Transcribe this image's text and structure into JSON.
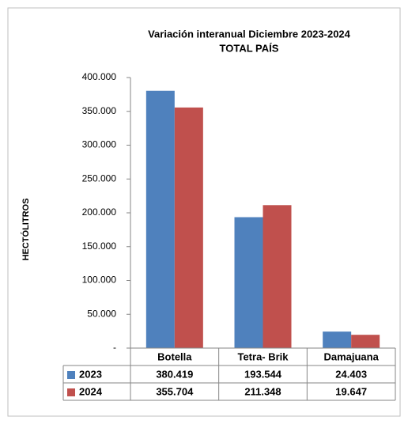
{
  "chart_data": {
    "type": "bar",
    "title": "Variación interanual  Diciembre 2023-2024",
    "subtitle": "TOTAL PAÍS",
    "y_label": "HECTÓLITROS",
    "categories": [
      "Botella",
      "Tetra- Brik",
      "Damajuana"
    ],
    "series": [
      {
        "name": "2023",
        "color": "#4f81bd",
        "values": [
          380419,
          193544,
          24403
        ],
        "value_labels": [
          "380.419",
          "193.544",
          "24.403"
        ]
      },
      {
        "name": "2024",
        "color": "#c0504d",
        "values": [
          355704,
          211348,
          19647
        ],
        "value_labels": [
          "355.704",
          "211.348",
          "19.647"
        ]
      }
    ],
    "ylim": [
      0,
      400000
    ],
    "yticks": [
      {
        "value": 0,
        "label": "-"
      },
      {
        "value": 50000,
        "label": "50.000"
      },
      {
        "value": 100000,
        "label": "100.000"
      },
      {
        "value": 150000,
        "label": "150.000"
      },
      {
        "value": 200000,
        "label": "200.000"
      },
      {
        "value": 250000,
        "label": "250.000"
      },
      {
        "value": 300000,
        "label": "300.000"
      },
      {
        "value": 350000,
        "label": "350.000"
      },
      {
        "value": 400000,
        "label": "400.000"
      }
    ],
    "grid": false
  }
}
